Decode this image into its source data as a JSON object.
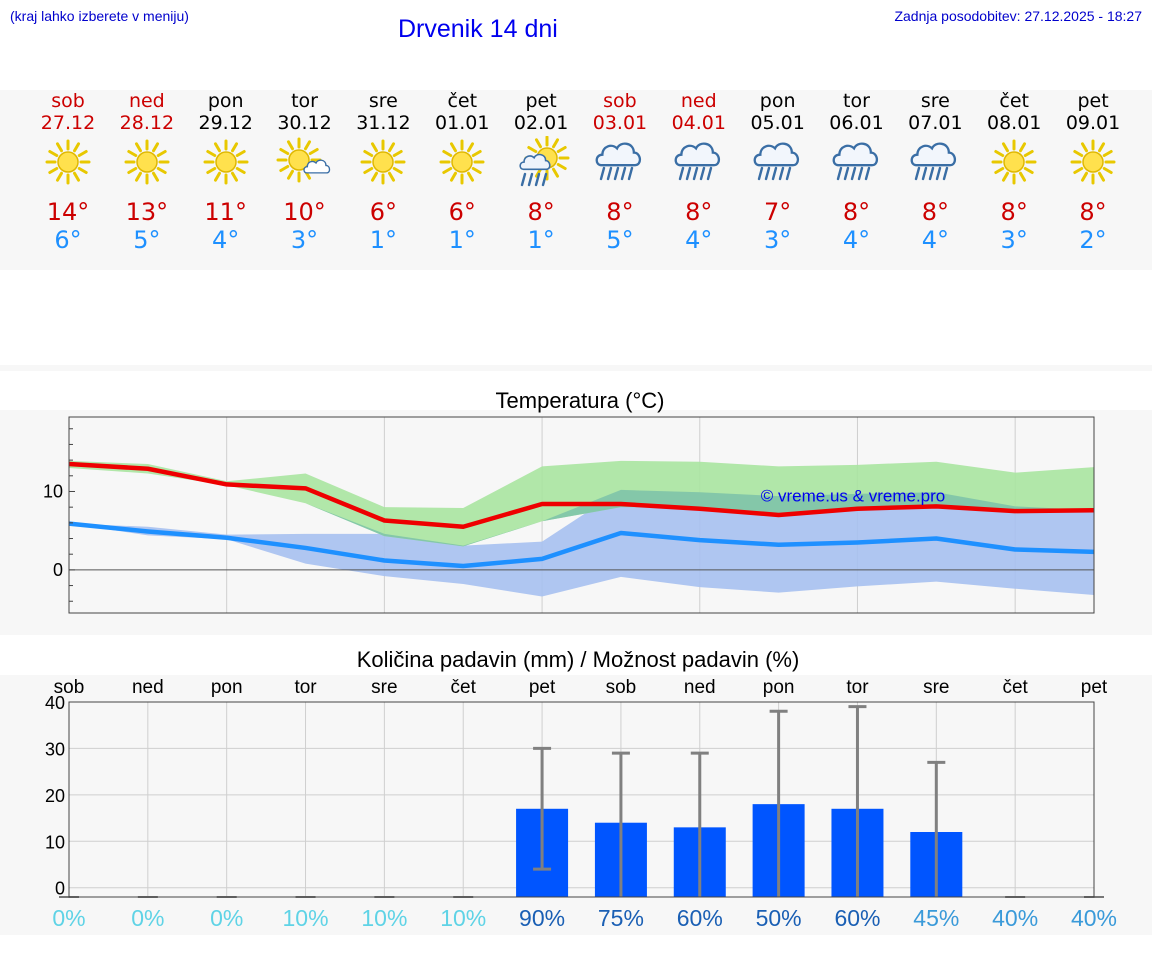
{
  "header": {
    "hint": "(kraj lahko izberete v meniju)",
    "title": "Drvenik 14 dni",
    "updated": "Zadnja posodobitev: 27.12.2025 - 18:27"
  },
  "days": [
    {
      "name": "sob",
      "date": "27.12",
      "weekend": true,
      "icon": "sun-icon",
      "tmax": "14°",
      "tmin": "6°"
    },
    {
      "name": "ned",
      "date": "28.12",
      "weekend": true,
      "icon": "sun-icon",
      "tmax": "13°",
      "tmin": "5°"
    },
    {
      "name": "pon",
      "date": "29.12",
      "weekend": false,
      "icon": "sun-icon",
      "tmax": "11°",
      "tmin": "4°"
    },
    {
      "name": "tor",
      "date": "30.12",
      "weekend": false,
      "icon": "sun-cloud-icon",
      "tmax": "10°",
      "tmin": "3°"
    },
    {
      "name": "sre",
      "date": "31.12",
      "weekend": false,
      "icon": "sun-icon",
      "tmax": "6°",
      "tmin": "1°"
    },
    {
      "name": "čet",
      "date": "01.01",
      "weekend": false,
      "icon": "sun-icon",
      "tmax": "6°",
      "tmin": "1°"
    },
    {
      "name": "pet",
      "date": "02.01",
      "weekend": false,
      "icon": "sun-rain-icon",
      "tmax": "8°",
      "tmin": "1°"
    },
    {
      "name": "sob",
      "date": "03.01",
      "weekend": true,
      "icon": "rain-cloud-icon",
      "tmax": "8°",
      "tmin": "5°"
    },
    {
      "name": "ned",
      "date": "04.01",
      "weekend": true,
      "icon": "rain-cloud-icon",
      "tmax": "8°",
      "tmin": "4°"
    },
    {
      "name": "pon",
      "date": "05.01",
      "weekend": false,
      "icon": "rain-cloud-icon",
      "tmax": "7°",
      "tmin": "3°"
    },
    {
      "name": "tor",
      "date": "06.01",
      "weekend": false,
      "icon": "rain-cloud-icon",
      "tmax": "8°",
      "tmin": "4°"
    },
    {
      "name": "sre",
      "date": "07.01",
      "weekend": false,
      "icon": "rain-cloud-icon",
      "tmax": "8°",
      "tmin": "4°"
    },
    {
      "name": "čet",
      "date": "08.01",
      "weekend": false,
      "icon": "sun-icon",
      "tmax": "8°",
      "tmin": "3°"
    },
    {
      "name": "pet",
      "date": "09.01",
      "weekend": false,
      "icon": "sun-icon",
      "tmax": "8°",
      "tmin": "2°"
    }
  ],
  "colors": {
    "max_line": "#ee0000",
    "min_line": "#1e90ff",
    "max_band": "#a8e4a0",
    "min_band": "#a6c0f0",
    "overlap_band": "#7fc4a8",
    "bar": "#0055ff",
    "error": "#808080",
    "watermark": "#0000ee"
  },
  "chart_data": [
    {
      "type": "line",
      "title": "Temperatura (°C)",
      "watermark": "© vreme.us & vreme.pro",
      "ylim": [
        -5.5,
        19.5
      ],
      "yticks": [
        0,
        10
      ],
      "x": [
        0,
        1,
        2,
        3,
        4,
        5,
        6,
        7,
        8,
        9,
        10,
        11,
        12,
        13
      ],
      "series": [
        {
          "name": "max",
          "values": [
            13.5,
            12.9,
            10.9,
            10.4,
            6.3,
            5.5,
            8.4,
            8.4,
            7.8,
            7.0,
            7.8,
            8.1,
            7.5,
            7.6
          ],
          "band_low": [
            13.0,
            12.3,
            10.8,
            8.5,
            4.3,
            3.0,
            6.2,
            8.0,
            8.0,
            7.0,
            7.8,
            8.3,
            7.5,
            7.6
          ],
          "band_high": [
            13.9,
            13.5,
            11.3,
            12.3,
            8.0,
            7.9,
            13.2,
            13.9,
            13.8,
            13.2,
            13.4,
            13.8,
            12.4,
            13.1
          ]
        },
        {
          "name": "min",
          "values": [
            5.9,
            4.9,
            4.1,
            2.8,
            1.2,
            0.5,
            1.4,
            4.7,
            3.8,
            3.2,
            3.5,
            4.0,
            2.6,
            2.3
          ],
          "band_low": [
            5.9,
            4.4,
            3.9,
            0.8,
            -0.8,
            -1.8,
            -3.4,
            -0.9,
            -2.2,
            -2.9,
            -2.1,
            -1.5,
            -2.4,
            -3.2
          ],
          "band_high": [
            5.9,
            5.5,
            4.5,
            4.6,
            4.6,
            3.1,
            3.6,
            10.2,
            9.9,
            9.4,
            9.7,
            9.9,
            8.1,
            7.6
          ]
        }
      ]
    },
    {
      "type": "bar",
      "title": "Količina padavin (mm) / Možnost padavin (%)",
      "categories": [
        "sob",
        "ned",
        "pon",
        "tor",
        "sre",
        "čet",
        "pet",
        "sob",
        "ned",
        "pon",
        "tor",
        "sre",
        "čet",
        "pet"
      ],
      "ylim": [
        -2,
        40
      ],
      "yticks": [
        0,
        10,
        20,
        30,
        40
      ],
      "values": [
        0,
        0,
        0,
        0,
        0,
        0,
        17,
        14,
        13,
        18,
        17,
        12,
        0,
        0
      ],
      "error_high": [
        0,
        0,
        0,
        0,
        0,
        0,
        30,
        29,
        29,
        38,
        39,
        27,
        0,
        0
      ],
      "error_low": [
        0,
        0,
        0,
        0,
        0,
        0,
        4,
        0,
        0,
        0,
        0,
        0,
        0,
        0
      ],
      "probability": [
        "0%",
        "0%",
        "0%",
        "10%",
        "10%",
        "10%",
        "90%",
        "75%",
        "60%",
        "50%",
        "60%",
        "45%",
        "40%",
        "40%"
      ],
      "probability_colors": [
        "#5fd3e6",
        "#5fd3e6",
        "#5fd3e6",
        "#5fd3e6",
        "#5fd3e6",
        "#5fd3e6",
        "#1a5fb4",
        "#1a5fb4",
        "#1a5fb4",
        "#1a5fb4",
        "#1a5fb4",
        "#3a9ad9",
        "#3a9ad9",
        "#3a9ad9"
      ]
    }
  ]
}
